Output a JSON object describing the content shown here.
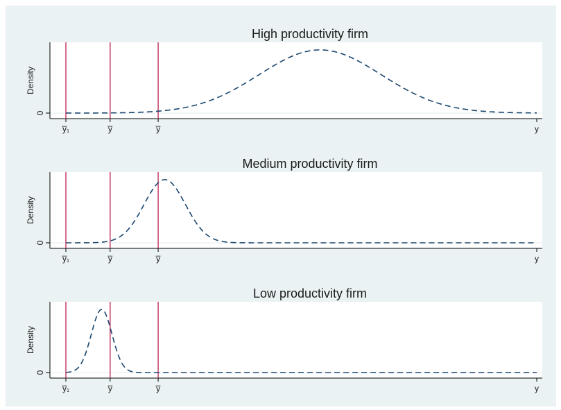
{
  "chart_data": [
    {
      "type": "line",
      "title": "High productivity firm",
      "ylabel": "Density",
      "xlim": [
        0,
        100
      ],
      "ylim": [
        0,
        1.12
      ],
      "yticks": [
        {
          "value": 0,
          "label": "0"
        }
      ],
      "x_ticks": [
        {
          "value": 0,
          "label": "y̅₁"
        },
        {
          "value": 9.4,
          "label": "y̅"
        },
        {
          "value": 19.6,
          "label": "y̅"
        },
        {
          "value": 100,
          "label": "y"
        }
      ],
      "vlines": [
        0,
        9.4,
        19.6
      ],
      "series": [
        {
          "mean": 54,
          "sd": 13,
          "peak": 1.0
        }
      ],
      "line_color": "#1a476f",
      "vline_color": "#c1305b"
    },
    {
      "type": "line",
      "title": "Medium productivity firm",
      "ylabel": "Density",
      "xlim": [
        0,
        100
      ],
      "ylim": [
        0,
        1.12
      ],
      "yticks": [
        {
          "value": 0,
          "label": "0"
        }
      ],
      "x_ticks": [
        {
          "value": 0,
          "label": "y̅₁"
        },
        {
          "value": 9.4,
          "label": "y̅"
        },
        {
          "value": 19.6,
          "label": "y̅"
        },
        {
          "value": 100,
          "label": "y"
        }
      ],
      "vlines": [
        0,
        9.4,
        19.6
      ],
      "series": [
        {
          "mean": 21,
          "sd": 4.4,
          "peak": 1.0
        }
      ],
      "line_color": "#1a476f",
      "vline_color": "#c1305b"
    },
    {
      "type": "line",
      "title": "Low productivity firm",
      "ylabel": "Density",
      "xlim": [
        0,
        100
      ],
      "ylim": [
        0,
        1.12
      ],
      "yticks": [
        {
          "value": 0,
          "label": "0"
        }
      ],
      "x_ticks": [
        {
          "value": 0,
          "label": "y̅₁"
        },
        {
          "value": 9.4,
          "label": "y̅"
        },
        {
          "value": 19.6,
          "label": "y̅"
        },
        {
          "value": 100,
          "label": "y"
        }
      ],
      "vlines": [
        0,
        9.4,
        19.6
      ],
      "series": [
        {
          "mean": 7.6,
          "sd": 2.2,
          "peak": 1.0
        }
      ],
      "line_color": "#1a476f",
      "vline_color": "#c1305b"
    }
  ]
}
